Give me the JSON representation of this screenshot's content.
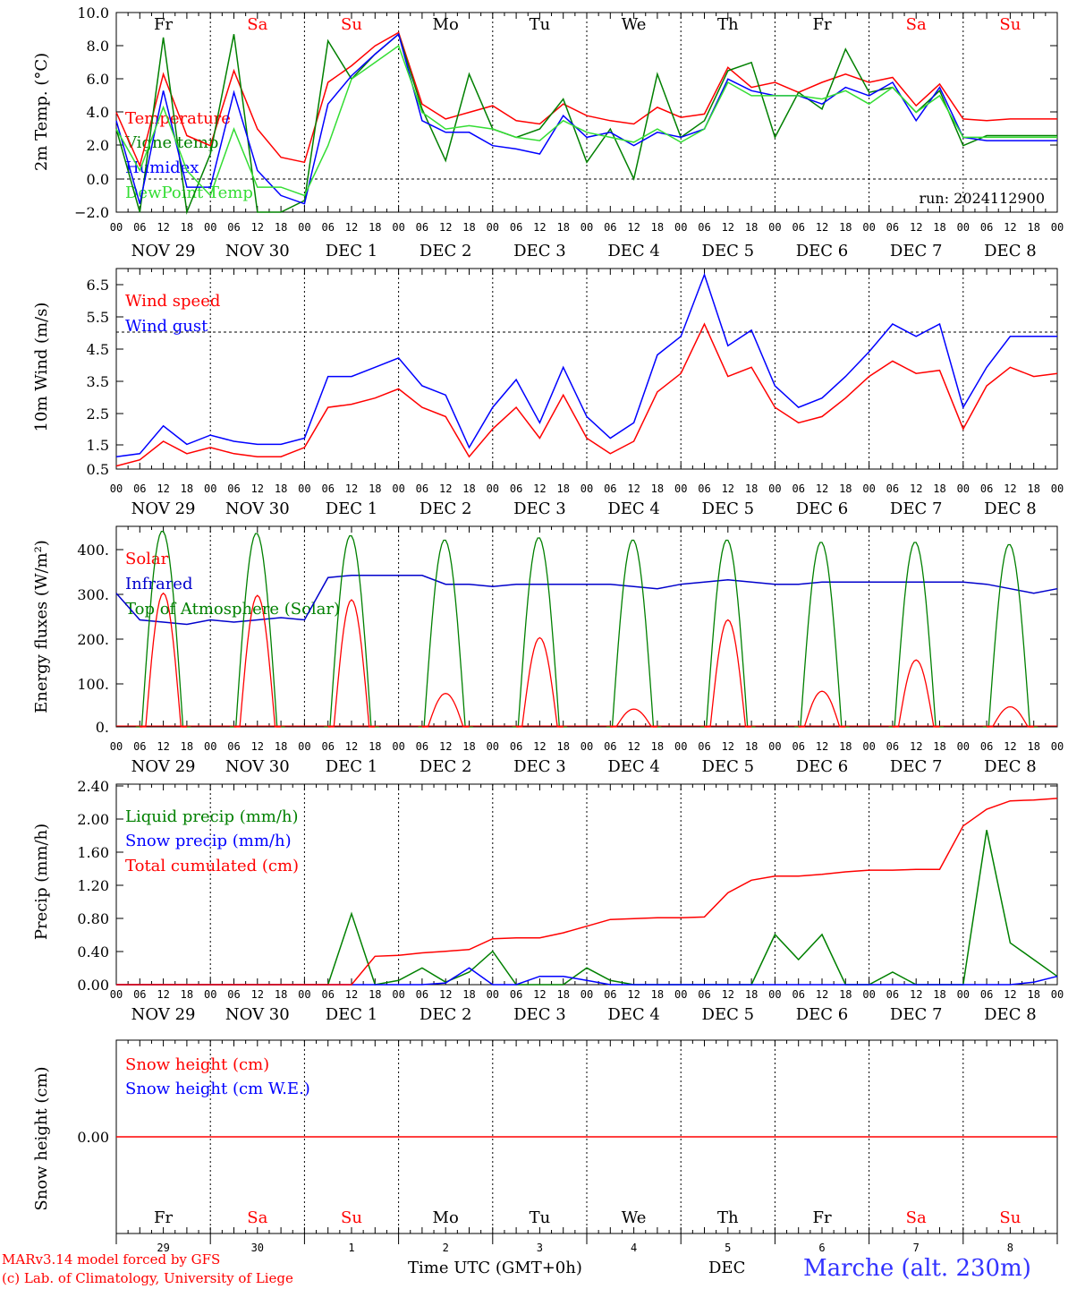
{
  "chart_data": [
    {
      "type": "line",
      "ylabel": "2m Temp. (°C)",
      "ylim": [
        -2,
        10
      ],
      "ytick_labels": [
        "10.0",
        "8.0",
        "6.0",
        "4.0",
        "2.0",
        "0.0",
        "−2.0"
      ],
      "ref_line": 0,
      "run_label": "run: 2024112900",
      "x": [
        0,
        6,
        12,
        18,
        24,
        30,
        36,
        42,
        48,
        54,
        60,
        66,
        72,
        78,
        84,
        90,
        96,
        102,
        108,
        114,
        120,
        126,
        132,
        138,
        144,
        150,
        156,
        162,
        168,
        174,
        180,
        186,
        192,
        198,
        204,
        210,
        216,
        222,
        228,
        234,
        240
      ],
      "series": [
        {
          "name": "Temperature",
          "color": "#ff0000",
          "values": [
            4.0,
            0.8,
            6.3,
            2.6,
            2.0,
            6.5,
            3.0,
            1.3,
            1.0,
            5.8,
            6.8,
            8.0,
            8.8,
            4.5,
            3.6,
            4.0,
            4.4,
            3.5,
            3.3,
            4.5,
            3.8,
            3.5,
            3.3,
            4.3,
            3.7,
            3.9,
            6.7,
            5.5,
            5.8,
            5.2,
            5.8,
            6.3,
            5.8,
            6.1,
            4.4,
            5.7,
            3.6,
            3.5,
            3.6,
            3.6,
            3.6
          ]
        },
        {
          "name": "Vigne temp",
          "color": "#008000",
          "values": [
            3.0,
            -2.0,
            8.5,
            -2.0,
            1.5,
            8.7,
            -2.0,
            -2.0,
            -1.3,
            8.3,
            6.0,
            7.5,
            8.7,
            4.2,
            1.1,
            6.3,
            3.0,
            2.5,
            3.0,
            4.8,
            1.0,
            3.0,
            0.0,
            6.3,
            2.5,
            3.5,
            6.5,
            7.0,
            2.5,
            5.2,
            4.2,
            7.8,
            5.2,
            5.5,
            4.0,
            5.3,
            2.0,
            2.6,
            2.6,
            2.6,
            2.6
          ]
        },
        {
          "name": "Humidex",
          "color": "#0000ff",
          "values": [
            3.5,
            -1.5,
            5.3,
            -0.5,
            -0.5,
            5.2,
            0.5,
            -1.0,
            -1.5,
            4.5,
            6.2,
            7.5,
            8.7,
            3.5,
            2.8,
            2.8,
            2.0,
            1.8,
            1.5,
            3.8,
            2.5,
            2.8,
            2.0,
            2.8,
            2.5,
            3.0,
            6.0,
            5.3,
            5.0,
            5.0,
            4.5,
            5.5,
            5.0,
            5.8,
            3.5,
            5.5,
            2.5,
            2.3,
            2.3,
            2.3,
            2.3
          ]
        },
        {
          "name": "DewPoint Temp",
          "color": "#33dd33",
          "values": [
            3.0,
            0.5,
            4.3,
            0.5,
            -1.0,
            3.0,
            -0.5,
            -0.5,
            -1.0,
            2.0,
            6.0,
            7.0,
            8.0,
            4.0,
            3.0,
            3.2,
            3.0,
            2.5,
            2.3,
            3.5,
            2.8,
            2.5,
            2.2,
            3.0,
            2.2,
            3.0,
            5.8,
            5.0,
            5.0,
            5.0,
            4.8,
            5.3,
            4.5,
            5.5,
            4.0,
            5.0,
            2.5,
            2.5,
            2.5,
            2.5,
            2.5
          ]
        }
      ]
    },
    {
      "type": "line",
      "ylabel": "10m Wind (m/s)",
      "ylim": [
        0.5,
        7.0
      ],
      "ytick_labels": [
        "6.5",
        "5.5",
        "4.5",
        "3.5",
        "2.5",
        "1.5",
        "0.5"
      ],
      "ref_line": 5.0,
      "x": [
        0,
        6,
        12,
        18,
        24,
        30,
        36,
        42,
        48,
        54,
        60,
        66,
        72,
        78,
        84,
        90,
        96,
        102,
        108,
        114,
        120,
        126,
        132,
        138,
        144,
        150,
        156,
        162,
        168,
        174,
        180,
        186,
        192,
        198,
        204,
        210,
        216,
        222,
        228,
        234,
        240
      ],
      "series": [
        {
          "name": "Wind speed",
          "color": "#ff0000",
          "values": [
            0.6,
            0.8,
            1.4,
            1.0,
            1.2,
            1.0,
            0.9,
            0.9,
            1.2,
            2.5,
            2.6,
            2.8,
            3.1,
            2.5,
            2.2,
            0.9,
            1.8,
            2.5,
            1.5,
            2.9,
            1.5,
            1.0,
            1.4,
            3.0,
            3.6,
            5.2,
            3.5,
            3.8,
            2.5,
            2.0,
            2.2,
            2.8,
            3.5,
            4.0,
            3.6,
            3.7,
            1.8,
            3.2,
            3.8,
            3.5,
            3.6
          ]
        },
        {
          "name": "Wind gust",
          "color": "#0000ff",
          "values": [
            0.9,
            1.0,
            1.9,
            1.3,
            1.6,
            1.4,
            1.3,
            1.3,
            1.5,
            3.5,
            3.5,
            3.8,
            4.1,
            3.2,
            2.9,
            1.2,
            2.5,
            3.4,
            2.0,
            3.8,
            2.2,
            1.5,
            2.0,
            4.2,
            4.8,
            6.8,
            4.5,
            5.0,
            3.2,
            2.5,
            2.8,
            3.5,
            4.3,
            5.2,
            4.8,
            5.2,
            2.5,
            3.8,
            4.8,
            4.8,
            4.8
          ]
        }
      ]
    },
    {
      "type": "line",
      "ylabel": "Energy fluxes (W/m²)",
      "ylim": [
        0,
        450
      ],
      "ytick_labels": [
        "400.",
        "300.",
        "200.",
        "100.",
        "0."
      ],
      "series": [
        {
          "name": "Solar",
          "color": "#ff0000",
          "day_peaks": [
            300,
            295,
            285,
            75,
            200,
            40,
            240,
            80,
            150,
            45
          ]
        },
        {
          "name": "Infrared",
          "color": "#0000cc",
          "values": [
            300,
            240,
            235,
            230,
            240,
            235,
            240,
            245,
            240,
            335,
            340,
            340,
            340,
            340,
            320,
            320,
            315,
            320,
            320,
            320,
            320,
            320,
            315,
            310,
            320,
            325,
            330,
            325,
            320,
            320,
            325,
            325,
            325,
            325,
            325,
            325,
            325,
            320,
            310,
            300,
            310
          ]
        },
        {
          "name": "Top of Atmosphere (Solar)",
          "color": "#008000",
          "day_peaks": [
            440,
            435,
            430,
            420,
            425,
            420,
            420,
            415,
            415,
            410
          ]
        }
      ]
    },
    {
      "type": "line",
      "ylabel": "Precip (mm/h)",
      "ylim": [
        0,
        2.4
      ],
      "ytick_labels": [
        "2.40",
        "2.00",
        "1.60",
        "1.20",
        "0.80",
        "0.40",
        "0.00"
      ],
      "series": [
        {
          "name": "Liquid precip (mm/h)",
          "color": "#008000",
          "values": [
            0,
            0,
            0,
            0,
            0,
            0,
            0,
            0,
            0,
            0,
            0.85,
            0,
            0.05,
            0.2,
            0.03,
            0.15,
            0.4,
            0,
            0,
            0,
            0.2,
            0.05,
            0,
            0,
            0,
            0,
            0,
            0,
            0.6,
            0.3,
            0.6,
            0,
            0,
            0.15,
            0,
            0,
            0,
            1.85,
            0.5,
            0.3,
            0.1
          ]
        },
        {
          "name": "Snow precip (mm/h)",
          "color": "#0000ff",
          "values": [
            0,
            0,
            0,
            0,
            0,
            0,
            0,
            0,
            0,
            0,
            0,
            0,
            0,
            0,
            0.02,
            0.2,
            0,
            0,
            0.1,
            0.1,
            0.05,
            0,
            0,
            0,
            0,
            0,
            0,
            0,
            0,
            0,
            0,
            0,
            0,
            0,
            0,
            0,
            0,
            0,
            0,
            0.03,
            0.1
          ]
        },
        {
          "name": "Total cumulated (cm)",
          "color": "#ff0000",
          "values": [
            0,
            0,
            0,
            0,
            0,
            0,
            0,
            0,
            0,
            0,
            0,
            0.34,
            0.35,
            0.38,
            0.4,
            0.42,
            0.55,
            0.56,
            0.56,
            0.62,
            0.7,
            0.78,
            0.79,
            0.8,
            0.8,
            0.81,
            1.1,
            1.25,
            1.3,
            1.3,
            1.32,
            1.35,
            1.37,
            1.37,
            1.38,
            1.38,
            1.9,
            2.1,
            2.2,
            2.21,
            2.23
          ]
        }
      ]
    },
    {
      "type": "line",
      "ylabel": "Snow height (cm)",
      "ytick_labels": [
        "0.00"
      ],
      "series": [
        {
          "name": "Snow height (cm)",
          "color": "#ff0000",
          "values": [
            0,
            0
          ]
        },
        {
          "name": "Snow height (cm W.E.)",
          "color": "#0000ff",
          "values": []
        }
      ]
    }
  ],
  "days": [
    {
      "abbr": "Fr",
      "color": "#000000",
      "month": "NOV",
      "num": "29",
      "short": "29"
    },
    {
      "abbr": "Sa",
      "color": "#ff0000",
      "month": "NOV",
      "num": "30",
      "short": "30"
    },
    {
      "abbr": "Su",
      "color": "#ff0000",
      "month": "DEC",
      "num": "1",
      "short": "1"
    },
    {
      "abbr": "Mo",
      "color": "#000000",
      "month": "DEC",
      "num": "2",
      "short": "2"
    },
    {
      "abbr": "Tu",
      "color": "#000000",
      "month": "DEC",
      "num": "3",
      "short": "3"
    },
    {
      "abbr": "We",
      "color": "#000000",
      "month": "DEC",
      "num": "4",
      "short": "4"
    },
    {
      "abbr": "Th",
      "color": "#000000",
      "month": "DEC",
      "num": "5",
      "short": "5"
    },
    {
      "abbr": "Fr",
      "color": "#000000",
      "month": "DEC",
      "num": "6",
      "short": "6"
    },
    {
      "abbr": "Sa",
      "color": "#ff0000",
      "month": "DEC",
      "num": "7",
      "short": "7"
    },
    {
      "abbr": "Su",
      "color": "#ff0000",
      "month": "DEC",
      "num": "8",
      "short": "8"
    }
  ],
  "hour_labels": [
    "00",
    "06",
    "12",
    "18"
  ],
  "footer": {
    "model": "MARv3.14 model forced by GFS",
    "lab": "(c) Lab. of Climatology, University of Liege",
    "xlabel": "Time UTC (GMT+0h)",
    "month": "DEC",
    "station": "Marche (alt. 230m)"
  }
}
